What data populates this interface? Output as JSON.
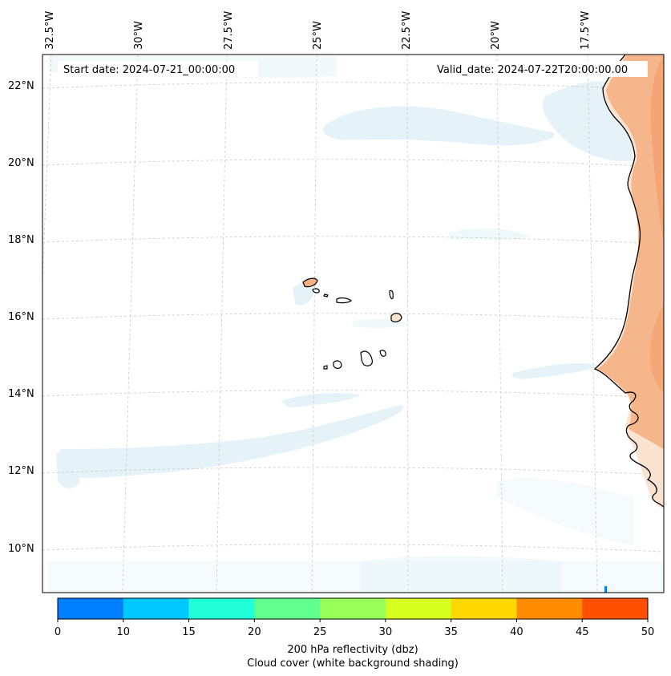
{
  "map": {
    "start_date": "Start date: 2024-07-21_00:00:00",
    "valid_date": "Valid_date: 2024-07-22T20:00:00.00",
    "lon_labels": [
      "32.5°W",
      "30°W",
      "27.5°W",
      "25°W",
      "22.5°W",
      "20°W",
      "17.5°W"
    ],
    "lat_labels": [
      "22°N",
      "20°N",
      "18°N",
      "16°N",
      "14°N",
      "12°N",
      "10°N"
    ],
    "projection": "Lambert conformal (curved graticule)",
    "gridlines": "dashed light grey",
    "land_shading": "orange (high cloud / reflectivity overlay over West Africa)",
    "cloud_shading": "light blue (white background cloud cover)",
    "places": [
      "Cape Verde Islands",
      "West African coast (Mauritania, Senegal, Guinea-Bissau)"
    ]
  },
  "colorbar": {
    "ticks": [
      "0",
      "10",
      "15",
      "20",
      "25",
      "30",
      "35",
      "40",
      "45",
      "50"
    ],
    "colors": [
      "#0080ff",
      "#00c8ff",
      "#20ffd8",
      "#60ff90",
      "#98ff58",
      "#d8ff20",
      "#ffd800",
      "#ff8c00",
      "#ff5000"
    ],
    "label_line1": "200 hPa reflectivity (dbz)",
    "label_line2": "Cloud cover (white background shading)"
  }
}
